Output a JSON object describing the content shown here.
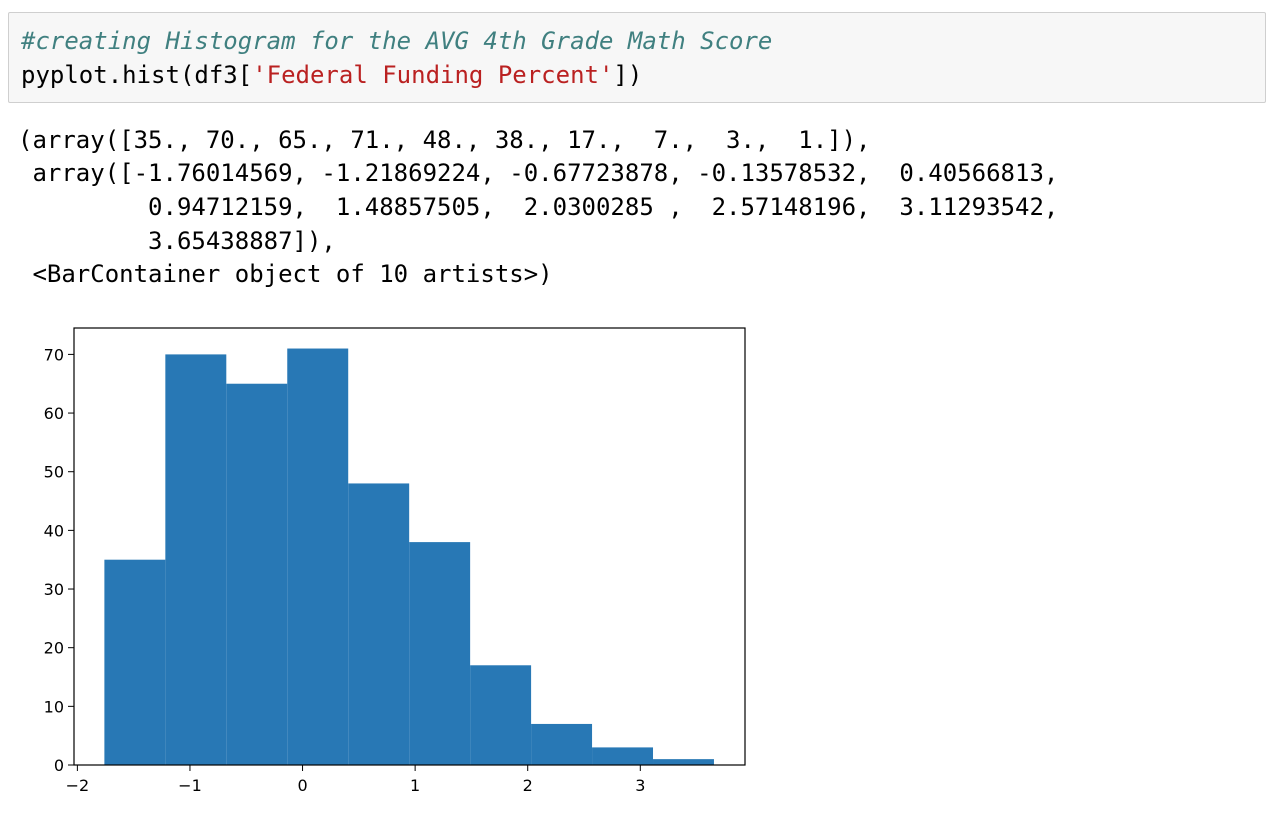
{
  "cell": {
    "comment": "#creating Histogram for the AVG 4th Grade Math Score",
    "code_prefix": "pyplot.hist(df3[",
    "code_string": "'Federal Funding Percent'",
    "code_suffix": "])"
  },
  "output": {
    "lines": [
      "(array([35., 70., 65., 71., 48., 38., 17.,  7.,  3.,  1.]),",
      " array([-1.76014569, -1.21869224, -0.67723878, -0.13578532,  0.40566813,",
      "         0.94712159,  1.48857505,  2.0300285 ,  2.57148196,  3.11293542,",
      "         3.65438887]),",
      " <BarContainer object of 10 artists>)"
    ]
  },
  "chart_data": {
    "type": "bar",
    "title": "",
    "xlabel": "",
    "ylabel": "",
    "bin_edges": [
      -1.76014569,
      -1.21869224,
      -0.67723878,
      -0.13578532,
      0.40566813,
      0.94712159,
      1.48857505,
      2.0300285,
      2.57148196,
      3.11293542,
      3.65438887
    ],
    "values": [
      35,
      70,
      65,
      71,
      48,
      38,
      17,
      7,
      3,
      1
    ],
    "xlim": [
      -2.03,
      3.93
    ],
    "ylim": [
      0,
      74.5
    ],
    "xticks": [
      -2,
      -1,
      0,
      1,
      2,
      3
    ],
    "xtick_labels": [
      "−2",
      "−1",
      "0",
      "1",
      "2",
      "3"
    ],
    "yticks": [
      0,
      10,
      20,
      30,
      40,
      50,
      60,
      70
    ],
    "ytick_labels": [
      "0",
      "10",
      "20",
      "30",
      "40",
      "50",
      "60",
      "70"
    ],
    "bar_color": "#2878b5",
    "grid": false
  }
}
